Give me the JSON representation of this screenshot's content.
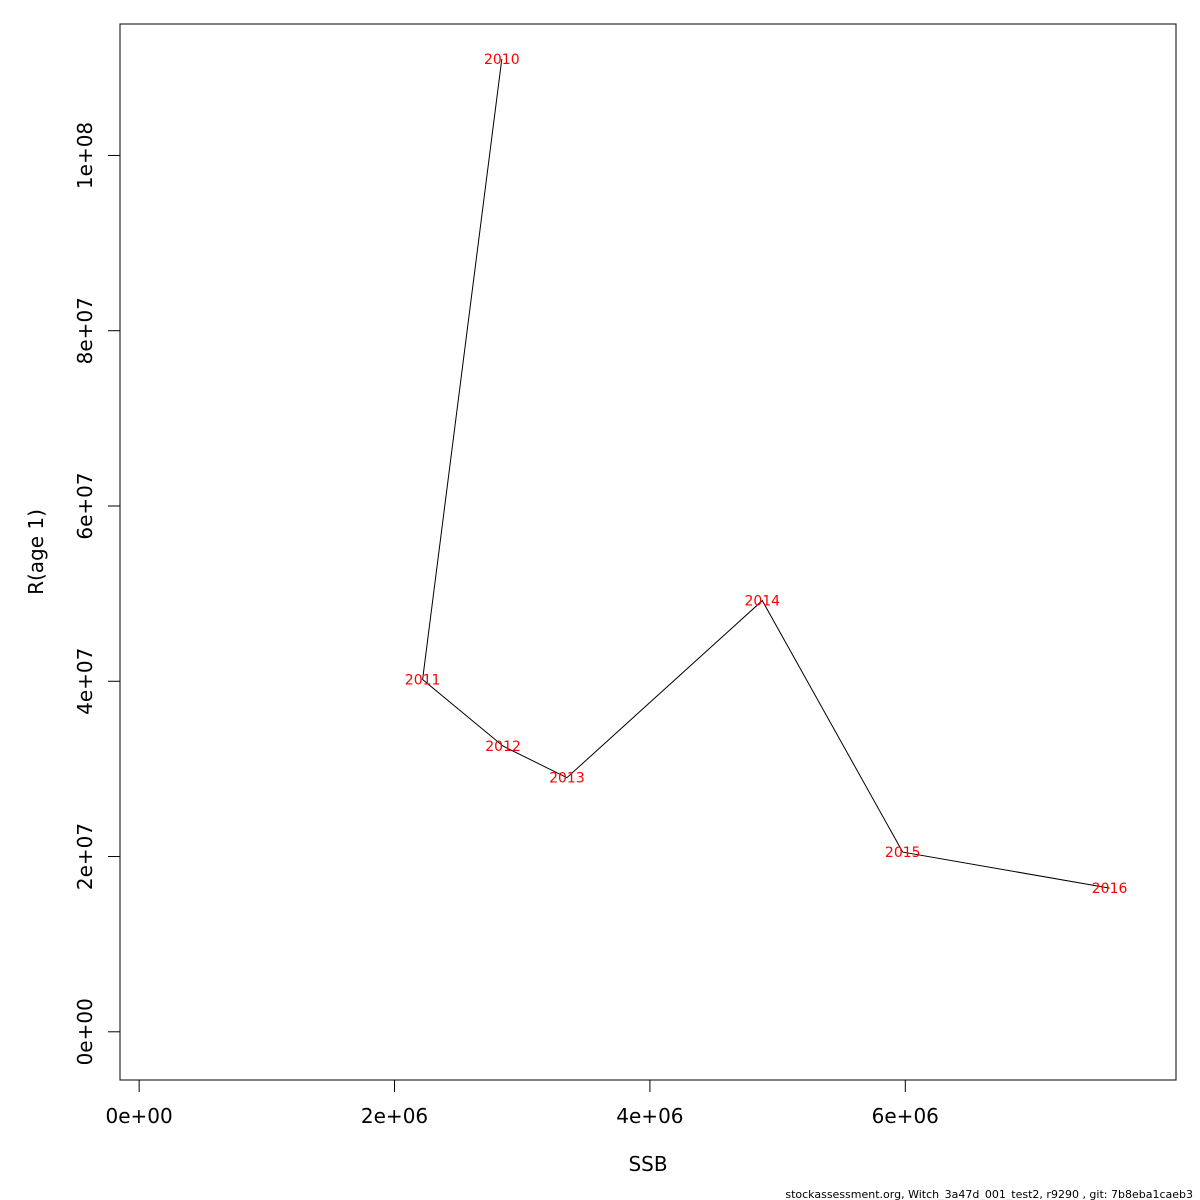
{
  "chart_data": {
    "type": "line",
    "title": "",
    "xlabel": "SSB",
    "ylabel": "R(age 1)",
    "xlim": [
      -150000,
      8120000
    ],
    "ylim": [
      -5500000,
      115000000
    ],
    "grid": false,
    "legend": "none",
    "line_color": "#000000",
    "label_color": "#ff0000",
    "xticks": [
      {
        "value": 0,
        "label": "0e+00"
      },
      {
        "value": 2000000,
        "label": "2e+06"
      },
      {
        "value": 4000000,
        "label": "4e+06"
      },
      {
        "value": 6000000,
        "label": "6e+06"
      }
    ],
    "yticks": [
      {
        "value": 0,
        "label": "0e+00"
      },
      {
        "value": 20000000,
        "label": "2e+07"
      },
      {
        "value": 40000000,
        "label": "4e+07"
      },
      {
        "value": 60000000,
        "label": "6e+07"
      },
      {
        "value": 80000000,
        "label": "8e+07"
      },
      {
        "value": 100000000,
        "label": "1e+08"
      }
    ],
    "points": [
      {
        "label": "2010",
        "x": 2840000,
        "y": 111000000
      },
      {
        "label": "2011",
        "x": 2220000,
        "y": 40200000
      },
      {
        "label": "2012",
        "x": 2850000,
        "y": 32600000
      },
      {
        "label": "2013",
        "x": 3350000,
        "y": 29000000
      },
      {
        "label": "2014",
        "x": 4880000,
        "y": 49200000
      },
      {
        "label": "2015",
        "x": 5980000,
        "y": 20500000
      },
      {
        "label": "2016",
        "x": 7600000,
        "y": 16400000
      }
    ]
  },
  "footer": "stockassessment.org, Witch_3a47d_001_test2, r9290 , git: 7b8eba1caeb3"
}
